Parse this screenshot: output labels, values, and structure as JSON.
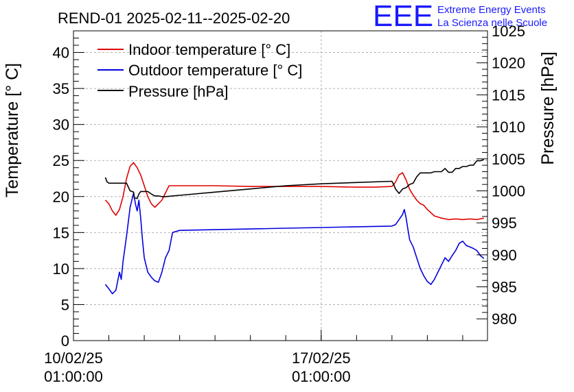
{
  "chart_data": {
    "type": "line",
    "title": "REND-01 2025-02-11--2025-02-20",
    "logo": {
      "text": "EEE",
      "line1": "Extreme Energy Events",
      "line2": "La Scienza nelle Scuole",
      "color": "#1a1aff"
    },
    "ylabel_left": "Temperature [° C]",
    "ylabel_right": "Pressure [hPa]",
    "x_axis": {
      "range_days": [
        0,
        11.7
      ],
      "ticks": [
        {
          "day": 0,
          "line1": "10/02/25",
          "line2": "01:00:00"
        },
        {
          "day": 7,
          "line1": "17/02/25",
          "line2": "01:00:00"
        }
      ]
    },
    "y_left": {
      "range": [
        0,
        43
      ],
      "ticks": [
        0,
        5,
        10,
        15,
        20,
        25,
        30,
        35,
        40
      ]
    },
    "y_right": {
      "range": [
        976.6,
        1025
      ],
      "ticks": [
        980,
        985,
        990,
        995,
        1000,
        1005,
        1010,
        1015,
        1020,
        1025
      ]
    },
    "grid": true,
    "legend": {
      "position": "top-left",
      "entries": [
        {
          "label": "Indoor temperature [° C]",
          "color": "#e00000"
        },
        {
          "label": "Outdoor temperature [° C]",
          "color": "#0000e0"
        },
        {
          "label": "Pressure [hPa]",
          "color": "#000000"
        }
      ]
    },
    "series": [
      {
        "name": "Indoor temperature [° C]",
        "axis": "left",
        "color": "#e00000",
        "x": [
          0.9,
          1.0,
          1.1,
          1.2,
          1.3,
          1.4,
          1.5,
          1.6,
          1.7,
          1.8,
          1.9,
          2.0,
          2.1,
          2.2,
          2.3,
          2.4,
          2.5,
          2.6,
          2.7,
          3.0,
          4.0,
          5.0,
          6.0,
          7.0,
          8.0,
          8.5,
          9.0,
          9.1,
          9.2,
          9.3,
          9.4,
          9.5,
          9.6,
          9.7,
          9.8,
          9.9,
          10.0,
          10.2,
          10.4,
          10.6,
          10.8,
          11.0,
          11.2,
          11.4,
          11.6
        ],
        "y": [
          19.5,
          19.0,
          18.0,
          17.4,
          18.2,
          20.0,
          22.5,
          24.2,
          24.7,
          24.0,
          23.0,
          21.5,
          20.0,
          19.0,
          18.5,
          19.0,
          19.5,
          20.5,
          21.5,
          21.5,
          21.5,
          21.4,
          21.4,
          21.4,
          21.3,
          21.3,
          21.4,
          22.0,
          23.0,
          23.3,
          22.3,
          21.0,
          20.2,
          19.5,
          19.0,
          18.8,
          18.2,
          17.3,
          17.0,
          16.8,
          16.9,
          16.8,
          16.9,
          16.8,
          17.0
        ]
      },
      {
        "name": "Outdoor temperature [° C]",
        "axis": "left",
        "color": "#0000e0",
        "x": [
          0.9,
          1.0,
          1.1,
          1.2,
          1.3,
          1.35,
          1.4,
          1.5,
          1.6,
          1.7,
          1.75,
          1.8,
          1.85,
          1.9,
          1.95,
          2.0,
          2.1,
          2.2,
          2.3,
          2.4,
          2.5,
          2.6,
          2.7,
          2.8,
          3.0,
          4.0,
          5.0,
          6.0,
          7.0,
          8.0,
          9.0,
          9.1,
          9.2,
          9.3,
          9.35,
          9.4,
          9.45,
          9.5,
          9.6,
          9.7,
          9.8,
          9.9,
          10.0,
          10.1,
          10.2,
          10.3,
          10.4,
          10.5,
          10.6,
          10.7,
          10.8,
          10.9,
          11.0,
          11.1,
          11.2,
          11.3,
          11.4,
          11.5,
          11.6
        ],
        "y": [
          7.8,
          7.2,
          6.5,
          7.0,
          9.5,
          8.5,
          11.0,
          14.5,
          18.5,
          20.5,
          19.0,
          18.0,
          19.5,
          17.0,
          14.0,
          11.5,
          9.5,
          8.8,
          8.3,
          8.1,
          9.5,
          11.5,
          12.5,
          15.0,
          15.3,
          15.4,
          15.5,
          15.6,
          15.7,
          15.8,
          15.9,
          16.1,
          16.8,
          17.5,
          18.2,
          17.0,
          15.5,
          14.0,
          13.0,
          11.5,
          10.0,
          9.0,
          8.2,
          7.8,
          8.5,
          9.5,
          10.5,
          11.5,
          11.0,
          11.8,
          12.5,
          13.5,
          13.8,
          13.2,
          13.0,
          12.8,
          12.5,
          11.8,
          11.4
        ]
      },
      {
        "name": "Pressure [hPa]",
        "axis": "right",
        "color": "#000000",
        "x": [
          0.9,
          0.95,
          1.0,
          1.2,
          1.4,
          1.5,
          1.6,
          1.7,
          1.72,
          1.8,
          1.85,
          1.9,
          2.0,
          2.1,
          2.2,
          2.3,
          2.4,
          2.5,
          2.6,
          3.0,
          4.0,
          5.0,
          6.0,
          7.0,
          8.0,
          9.0,
          9.05,
          9.1,
          9.2,
          9.3,
          9.4,
          9.5,
          9.6,
          9.7,
          9.8,
          9.9,
          10.0,
          10.1,
          10.2,
          10.3,
          10.4,
          10.5,
          10.6,
          10.7,
          10.8,
          10.9,
          11.0,
          11.1,
          11.2,
          11.3,
          11.4,
          11.5,
          11.6
        ],
        "y": [
          1002.1,
          1001.4,
          1001.2,
          1001.2,
          1001.2,
          1001.2,
          1000.0,
          999.8,
          998.9,
          998.8,
          999.5,
          999.9,
          999.9,
          999.9,
          999.5,
          999.2,
          999.2,
          999.1,
          999.1,
          999.3,
          999.8,
          1000.3,
          1000.8,
          1001.1,
          1001.3,
          1001.5,
          1001.0,
          1000.3,
          999.6,
          1000.3,
          1000.5,
          1001.0,
          1001.2,
          1002.2,
          1002.8,
          1002.8,
          1002.8,
          1002.8,
          1003.0,
          1003.0,
          1003.0,
          1003.5,
          1002.9,
          1002.9,
          1003.5,
          1003.5,
          1003.8,
          1003.8,
          1004.0,
          1004.0,
          1004.7,
          1004.7,
          1004.9
        ]
      }
    ]
  }
}
